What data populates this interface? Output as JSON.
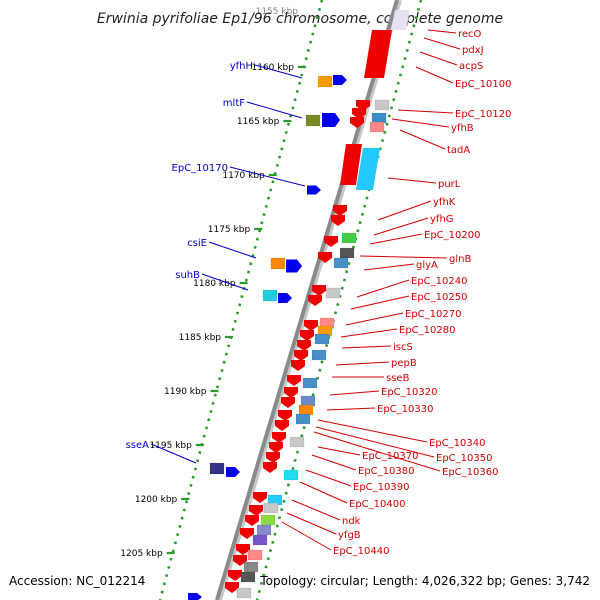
{
  "title": "Erwinia pyrifoliae Ep1/96 chromosome, complete genome",
  "accession_label": "Accession: NC_012214",
  "topology_label": "Topology: circular; Length: 4,026,322 bp; Genes: 3,742",
  "colors": {
    "forward_label": "#0000cc",
    "reverse_label": "#d40000",
    "backbone": "#8a8a8a",
    "ticks": "#2a9a2a",
    "gene_red": "#ee0000",
    "gene_blue": "#0000ee"
  },
  "position_ticks": [
    "1160 kbp",
    "1165 kbp",
    "1170 kbp",
    "1175 kbp",
    "1180 kbp",
    "1185 kbp",
    "1190 kbp",
    "1195 kbp",
    "1200 kbp",
    "1205 kbp"
  ],
  "forward_genes": [
    "yfhH",
    "mltF",
    "EpC_10170",
    "csiE",
    "suhB",
    "sseA"
  ],
  "reverse_genes": [
    "recO",
    "pdxJ",
    "acpS",
    "EpC_10100",
    "EpC_10120",
    "yfhB",
    "tadA",
    "purL",
    "yfhK",
    "yfhG",
    "EpC_10200",
    "glnB",
    "glyA",
    "EpC_10240",
    "EpC_10250",
    "EpC_10270",
    "EpC_10280",
    "iscS",
    "pepB",
    "sseB",
    "EpC_10320",
    "EpC_10330",
    "EpC_10340",
    "EpC_10350",
    "EpC_10360",
    "EpC_10370",
    "EpC_10380",
    "EpC_10390",
    "EpC_10400",
    "ndk",
    "yfgB",
    "EpC_10440"
  ]
}
